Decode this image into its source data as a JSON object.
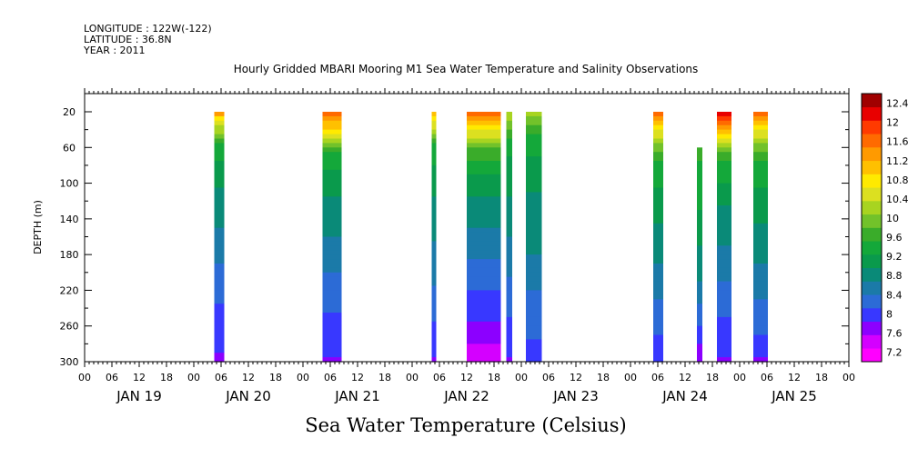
{
  "header": {
    "longitude": "LONGITUDE : 122W(-122)",
    "latitude": "LATITUDE : 36.8N",
    "year": "YEAR : 2011"
  },
  "colors": {
    "palette": [
      "#ff00ff",
      "#d400ff",
      "#8c00ff",
      "#3838ff",
      "#2c6bd6",
      "#1b7aa8",
      "#0a8a78",
      "#0a9a4c",
      "#14a83a",
      "#3aac2a",
      "#72c22a",
      "#a8d420",
      "#dce020",
      "#ffea00",
      "#ffc000",
      "#ff9a00",
      "#ff6a00",
      "#ff3a00",
      "#e80000",
      "#a00000"
    ]
  },
  "chart_data": {
    "type": "heatmap",
    "title": "Hourly Gridded MBARI Mooring M1 Sea Water Temperature and Salinity Observations",
    "xlabel": "",
    "ylabel": "DEPTH (m)",
    "colorbar_label": "Sea Water Temperature (Celsius)",
    "x_unit": "hours since 2011-01-19 00:00",
    "x_range": [
      0,
      168
    ],
    "ylim": [
      300,
      0
    ],
    "y_ticks": [
      20,
      60,
      100,
      140,
      180,
      220,
      260,
      300
    ],
    "x_tick_labels": [
      "00",
      "06",
      "12",
      "18",
      "00",
      "06",
      "12",
      "18",
      "00",
      "06",
      "12",
      "18",
      "00",
      "06",
      "12",
      "18",
      "00",
      "06",
      "12",
      "18",
      "00",
      "06",
      "12",
      "18",
      "00",
      "06",
      "12",
      "18",
      "00"
    ],
    "day_labels": [
      "JAN 19",
      "JAN 20",
      "JAN 21",
      "JAN 22",
      "JAN 23",
      "JAN 24",
      "JAN 25"
    ],
    "colorbar_levels": [
      7.2,
      7.6,
      8,
      8.4,
      8.8,
      9.2,
      9.6,
      10,
      10.4,
      10.8,
      11.2,
      11.6,
      12,
      12.4
    ],
    "colorbar_range": [
      7.0,
      12.6
    ],
    "segments": [
      {
        "t0": 28.5,
        "t1": 30.7,
        "top_depth": 20,
        "profile": [
          [
            20,
            11.6
          ],
          [
            30,
            10.6
          ],
          [
            60,
            9.4
          ],
          [
            100,
            9.0
          ],
          [
            160,
            8.6
          ],
          [
            220,
            8.2
          ],
          [
            300,
            7.8
          ]
        ]
      },
      {
        "t0": 52.3,
        "t1": 56.5,
        "top_depth": 20,
        "profile": [
          [
            20,
            11.8
          ],
          [
            40,
            10.8
          ],
          [
            70,
            9.4
          ],
          [
            110,
            9.0
          ],
          [
            170,
            8.6
          ],
          [
            230,
            8.2
          ],
          [
            300,
            7.8
          ]
        ]
      },
      {
        "t0": 76.3,
        "t1": 77.3,
        "top_depth": 20,
        "profile": [
          [
            20,
            11.2
          ],
          [
            60,
            9.4
          ],
          [
            120,
            8.9
          ],
          [
            200,
            8.5
          ],
          [
            300,
            7.8
          ]
        ]
      },
      {
        "t0": 84.0,
        "t1": 91.5,
        "top_depth": 20,
        "profile": [
          [
            20,
            11.6
          ],
          [
            30,
            11.2
          ],
          [
            60,
            9.8
          ],
          [
            100,
            9.1
          ],
          [
            150,
            8.7
          ],
          [
            210,
            8.2
          ],
          [
            260,
            7.8
          ],
          [
            300,
            7.3
          ]
        ]
      },
      {
        "t0": 92.7,
        "t1": 94.0,
        "top_depth": 20,
        "profile": [
          [
            20,
            10.4
          ],
          [
            60,
            9.3
          ],
          [
            140,
            8.8
          ],
          [
            220,
            8.3
          ],
          [
            300,
            7.8
          ]
        ]
      },
      {
        "t0": 97.0,
        "t1": 100.5,
        "top_depth": 20,
        "profile": [
          [
            20,
            10.2
          ],
          [
            50,
            9.4
          ],
          [
            100,
            9.0
          ],
          [
            160,
            8.8
          ],
          [
            220,
            8.4
          ],
          [
            300,
            8.0
          ]
        ]
      },
      {
        "t0": 125.0,
        "t1": 127.2,
        "top_depth": 20,
        "profile": [
          [
            20,
            11.8
          ],
          [
            40,
            10.6
          ],
          [
            80,
            9.4
          ],
          [
            140,
            9.0
          ],
          [
            200,
            8.6
          ],
          [
            260,
            8.2
          ],
          [
            300,
            7.9
          ]
        ]
      },
      {
        "t0": 134.6,
        "t1": 135.8,
        "top_depth": 60,
        "profile": [
          [
            60,
            9.6
          ],
          [
            140,
            9.2
          ],
          [
            220,
            8.6
          ],
          [
            300,
            7.6
          ]
        ]
      },
      {
        "t0": 139.0,
        "t1": 142.2,
        "top_depth": 20,
        "profile": [
          [
            20,
            12.2
          ],
          [
            40,
            11.2
          ],
          [
            70,
            9.6
          ],
          [
            120,
            9.0
          ],
          [
            180,
            8.6
          ],
          [
            240,
            8.2
          ],
          [
            300,
            7.8
          ]
        ]
      },
      {
        "t0": 147.0,
        "t1": 150.2,
        "top_depth": 20,
        "profile": [
          [
            20,
            11.8
          ],
          [
            40,
            10.6
          ],
          [
            80,
            9.4
          ],
          [
            140,
            9.0
          ],
          [
            200,
            8.6
          ],
          [
            260,
            8.2
          ],
          [
            300,
            7.8
          ]
        ]
      }
    ]
  }
}
